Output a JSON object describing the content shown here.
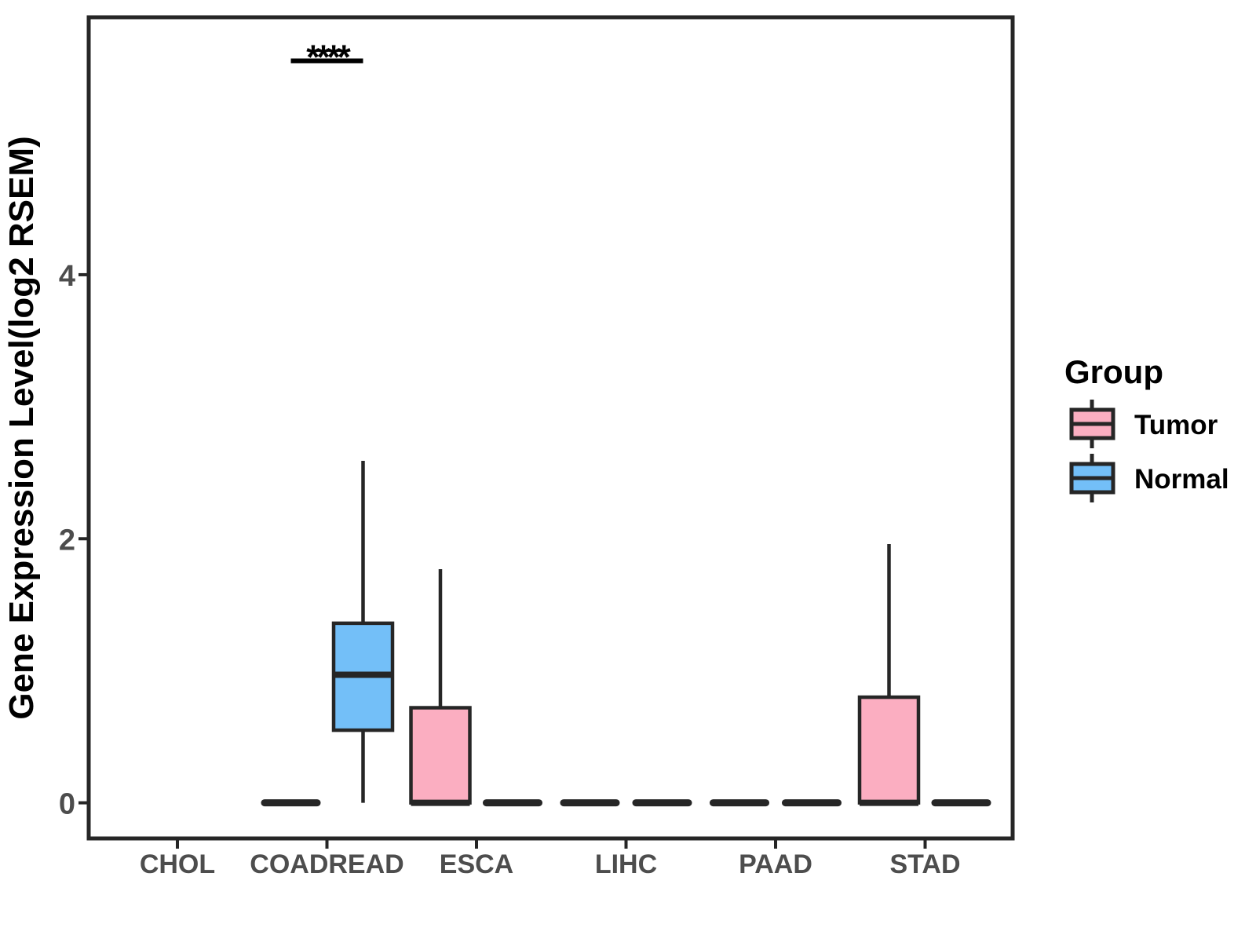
{
  "ylabel": "Gene Expression Level(log2 RSEM)",
  "legend": {
    "title": "Group",
    "items": [
      {
        "label": "Tumor",
        "color": "#FBAEC1"
      },
      {
        "label": "Normal",
        "color": "#73BFF8"
      }
    ]
  },
  "colors": {
    "background": "#FFFFFF",
    "box_stroke": "#262626",
    "axis_text": "#4D4D4D",
    "title_text": "#000000"
  },
  "chart_data": {
    "type": "boxplot",
    "title": "",
    "xlabel": "",
    "ylabel": "Gene Expression Level(log2 RSEM)",
    "categories": [
      "CHOL",
      "COADREAD",
      "ESCA",
      "LIHC",
      "PAAD",
      "STAD"
    ],
    "y_ticks": [
      0,
      2,
      4
    ],
    "ylim": [
      -0.27,
      5.95
    ],
    "grid": false,
    "legend_position": "right",
    "series": [
      {
        "name": "Tumor",
        "color": "#FBAEC1",
        "boxes": [
          null,
          {
            "min": 0,
            "q1": 0,
            "median": 0,
            "q3": 0,
            "max": 0
          },
          {
            "min": 0,
            "q1": 0,
            "median": 0,
            "q3": 0.72,
            "max": 1.77
          },
          {
            "min": 0,
            "q1": 0,
            "median": 0,
            "q3": 0,
            "max": 0
          },
          {
            "min": 0,
            "q1": 0,
            "median": 0,
            "q3": 0,
            "max": 0
          },
          {
            "min": 0,
            "q1": 0,
            "median": 0,
            "q3": 0.8,
            "max": 1.96
          }
        ]
      },
      {
        "name": "Normal",
        "color": "#73BFF8",
        "boxes": [
          null,
          {
            "min": 0,
            "q1": 0.55,
            "median": 0.97,
            "q3": 1.36,
            "max": 2.59
          },
          {
            "min": 0,
            "q1": 0,
            "median": 0,
            "q3": 0,
            "max": 0
          },
          {
            "min": 0,
            "q1": 0,
            "median": 0,
            "q3": 0,
            "max": 0
          },
          {
            "min": 0,
            "q1": 0,
            "median": 0,
            "q3": 0,
            "max": 0
          },
          {
            "min": 0,
            "q1": 0,
            "median": 0,
            "q3": 0,
            "max": 0
          }
        ]
      }
    ],
    "annotation": {
      "text": "****",
      "category": "COADREAD",
      "bar_y": 5.62,
      "compares": [
        "Tumor",
        "Normal"
      ]
    }
  }
}
